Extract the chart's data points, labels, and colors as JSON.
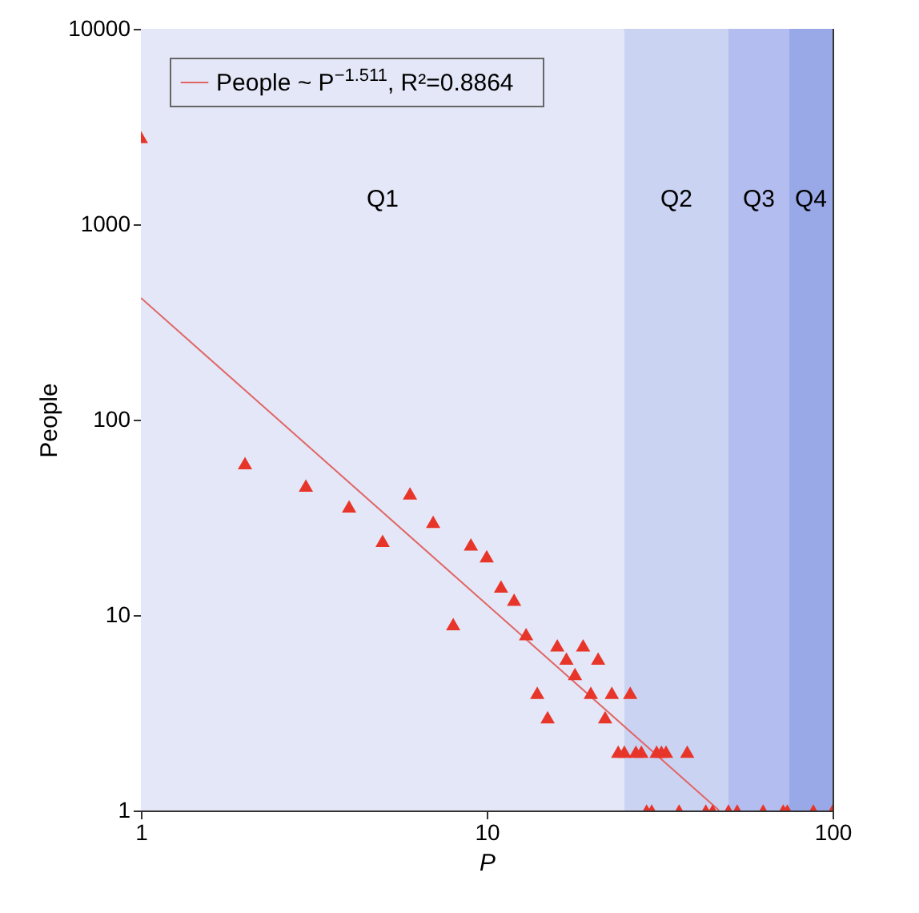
{
  "chart_data": {
    "type": "scatter",
    "xlabel": "P",
    "ylabel": "People",
    "log": "xy",
    "xlim": [
      1,
      100
    ],
    "xticks": [
      1,
      10,
      100
    ],
    "ylim": [
      1,
      10000
    ],
    "yticks": [
      1,
      10,
      100,
      1000,
      10000
    ],
    "grid": false,
    "legend": "top left",
    "marker": "triangle",
    "series": [
      {
        "color": "#e8352a",
        "x": [
          1,
          2,
          3,
          4,
          5,
          6,
          7,
          8,
          9,
          10,
          11,
          12,
          13,
          14,
          15,
          16,
          17,
          18,
          19,
          20,
          21,
          22,
          23,
          24,
          25,
          26,
          27,
          28,
          29,
          30,
          31,
          32,
          33,
          36,
          38,
          43,
          45,
          50,
          53,
          63,
          72,
          74,
          88,
          100
        ],
        "values": [
          2800,
          60,
          46,
          36,
          24,
          42,
          30,
          9,
          23,
          20,
          14,
          12,
          8,
          4,
          3,
          7,
          6,
          5,
          7,
          4,
          6,
          3,
          4,
          2,
          2,
          4,
          2,
          2,
          1,
          1,
          2,
          2,
          2,
          1,
          2,
          1,
          1,
          1,
          1,
          1,
          1,
          1,
          1,
          1
        ]
      },
      {
        "type": "line",
        "marker": "none",
        "name": "People ~ P$^{−1.511}$, R²=0.8864",
        "color": "#e06666",
        "x": [
          1,
          47
        ],
        "values": [
          420,
          1
        ]
      }
    ],
    "bands": [
      {
        "axis": "x",
        "from": 1,
        "to": 25,
        "label": "Q1",
        "color": "#e4e7f7"
      },
      {
        "axis": "x",
        "from": 25,
        "to": 50,
        "label": "Q2",
        "color": "#cbd3f3"
      },
      {
        "axis": "x",
        "from": 50,
        "to": 75,
        "label": "Q3",
        "color": "#b3bdef"
      },
      {
        "axis": "x",
        "from": 75,
        "to": 100,
        "label": "Q4",
        "color": "#99a9e8"
      }
    ]
  }
}
